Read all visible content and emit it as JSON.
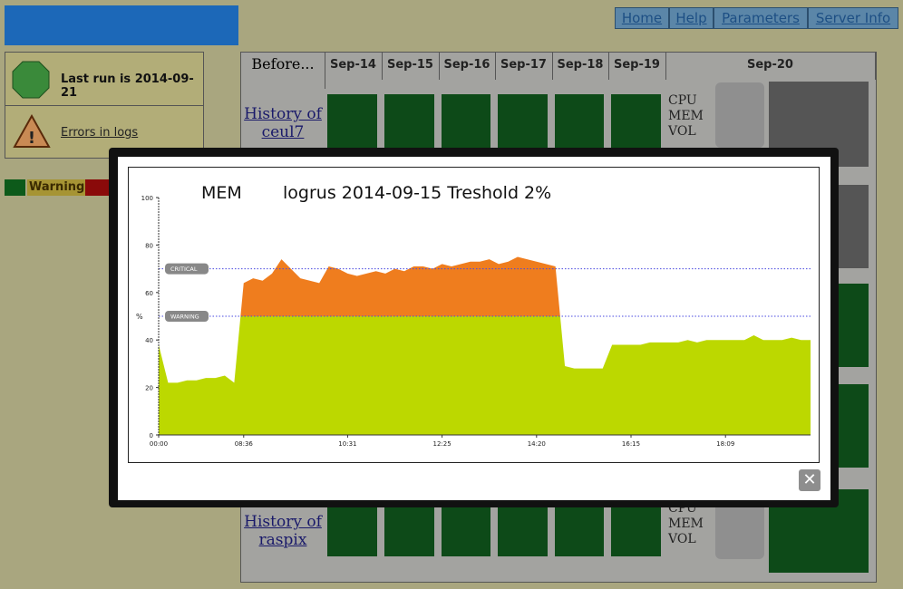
{
  "header": {
    "nav": [
      "Home",
      "Help",
      "Parameters",
      "Server Info"
    ]
  },
  "sidebar": {
    "status": "Last run is 2014-09-21",
    "errors": "Errors in logs",
    "legend": [
      "Warning"
    ]
  },
  "table": {
    "corner": "Before...",
    "dates": [
      "Sep-14",
      "Sep-15",
      "Sep-16",
      "Sep-17",
      "Sep-18",
      "Sep-19",
      "Sep-20"
    ],
    "rows": [
      {
        "label": "History of ceul7",
        "metrics": "CPU MEM VOL"
      },
      {
        "label": "History of raspix",
        "metrics": "CPU MEM VOL"
      }
    ]
  },
  "chart_data": {
    "type": "area",
    "title": "MEM",
    "subtitle": "logrus  2014-09-15 Treshold 2%",
    "y_label": "%",
    "categories": [
      "00:00",
      null,
      null,
      null,
      null,
      null,
      null,
      null,
      null,
      "08:36",
      null,
      null,
      null,
      null,
      null,
      null,
      null,
      null,
      null,
      null,
      "10:31",
      null,
      null,
      null,
      null,
      null,
      null,
      null,
      null,
      null,
      "12:25",
      null,
      null,
      null,
      null,
      null,
      null,
      null,
      null,
      null,
      "14:20",
      null,
      null,
      null,
      null,
      null,
      null,
      null,
      null,
      null,
      "16:15",
      null,
      null,
      null,
      null,
      null,
      null,
      null,
      null,
      null,
      "18:09",
      null,
      null,
      null,
      null,
      null,
      null,
      null,
      null,
      null
    ],
    "series": [
      {
        "name": "MEM",
        "values": [
          38,
          22,
          22,
          23,
          23,
          24,
          24,
          25,
          22,
          64,
          66,
          65,
          68,
          74,
          70,
          66,
          65,
          64,
          71,
          70,
          68,
          67,
          68,
          69,
          68,
          70,
          69,
          71,
          71,
          70,
          72,
          71,
          72,
          73,
          73,
          74,
          72,
          73,
          75,
          74,
          73,
          72,
          71,
          29,
          28,
          28,
          28,
          28,
          38,
          38,
          38,
          38,
          39,
          39,
          39,
          39,
          40,
          39,
          40,
          40,
          40,
          40,
          40,
          42,
          40,
          40,
          40,
          41,
          40,
          40
        ]
      }
    ],
    "colors": {
      "normal": "#bcd800",
      "above_warning": "#ef7d1e"
    },
    "thresholds": [
      {
        "label": "CRITICAL",
        "value": 70
      },
      {
        "label": "WARNING",
        "value": 50
      }
    ],
    "ylim": [
      0,
      100
    ],
    "yticks": [
      0,
      20,
      40,
      60,
      80,
      100
    ]
  }
}
